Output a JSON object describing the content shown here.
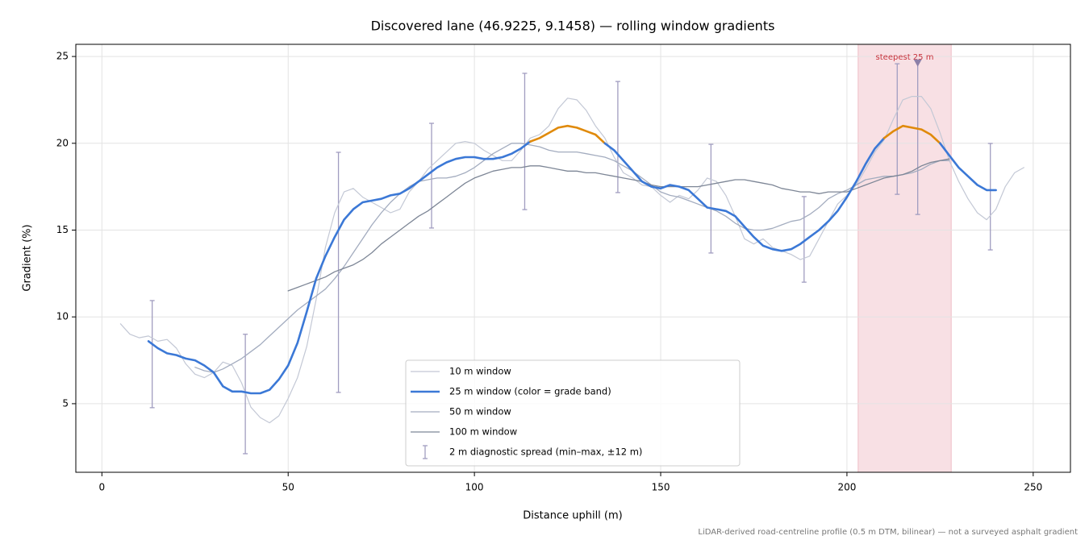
{
  "chart_data": {
    "type": "line",
    "title": "Discovered lane (46.9225, 9.1458) — rolling window gradients",
    "xlabel": "Distance uphill (m)",
    "ylabel": "Gradient (%)",
    "note": "LiDAR-derived road-centreline profile (0.5 m DTM, bilinear) — not a surveyed asphalt gradient",
    "xlim": [
      -7,
      260
    ],
    "ylim": [
      1.05,
      25.7
    ],
    "xticks": [
      0,
      50,
      100,
      150,
      200,
      250
    ],
    "yticks": [
      5,
      10,
      15,
      20,
      25
    ],
    "grid": true,
    "legend": "lower center",
    "x": [
      5,
      7.5,
      10,
      12.5,
      15,
      17.5,
      20,
      22.5,
      25,
      27.5,
      30,
      32.5,
      35,
      37.5,
      40,
      42.5,
      45,
      47.5,
      50,
      52.5,
      55,
      57.5,
      60,
      62.5,
      65,
      67.5,
      70,
      72.5,
      75,
      77.5,
      80,
      82.5,
      85,
      87.5,
      90,
      92.5,
      95,
      97.5,
      100,
      102.5,
      105,
      107.5,
      110,
      112.5,
      115,
      117.5,
      120,
      122.5,
      125,
      127.5,
      130,
      132.5,
      135,
      137.5,
      140,
      142.5,
      145,
      147.5,
      150,
      152.5,
      155,
      157.5,
      160,
      162.5,
      165,
      167.5,
      170,
      172.5,
      175,
      177.5,
      180,
      182.5,
      185,
      187.5,
      190,
      192.5,
      195,
      197.5,
      200,
      202.5,
      205,
      207.5,
      210,
      212.5,
      215,
      217.5,
      220,
      222.5,
      225,
      227.5,
      230,
      232.5,
      235,
      237.5,
      240,
      242.5,
      245,
      247.5
    ],
    "series": [
      {
        "name": "10 m window",
        "color": "#c3c8d5",
        "values": [
          9.6,
          9.0,
          8.8,
          8.9,
          8.6,
          8.7,
          8.2,
          7.3,
          6.7,
          6.5,
          6.8,
          7.4,
          7.2,
          6.2,
          4.8,
          4.2,
          3.9,
          4.3,
          5.3,
          6.5,
          8.3,
          11.0,
          14.0,
          16.0,
          17.2,
          17.4,
          16.9,
          16.6,
          16.3,
          16.0,
          16.2,
          17.2,
          17.8,
          18.5,
          19.0,
          19.5,
          20.0,
          20.1,
          20.0,
          19.6,
          19.3,
          19.0,
          19.0,
          19.6,
          20.3,
          20.5,
          21.0,
          22.0,
          22.6,
          22.5,
          21.9,
          21.0,
          20.3,
          19.2,
          18.3,
          18.0,
          17.6,
          17.5,
          17.0,
          16.6,
          17.0,
          16.8,
          17.3,
          18.0,
          17.8,
          17.0,
          15.8,
          14.5,
          14.2,
          14.5,
          14.0,
          13.8,
          13.6,
          13.3,
          13.5,
          14.5,
          15.5,
          16.5,
          17.0,
          17.6,
          18.5,
          19.5,
          20.2,
          21.4,
          22.5,
          22.7,
          22.7,
          22.0,
          20.6,
          19.0,
          17.8,
          16.8,
          16.0,
          15.6,
          16.2,
          17.5,
          18.3,
          18.6
        ]
      },
      {
        "name": "25 m window (color = grade band)",
        "color": "#3b78d6",
        "values": [
          null,
          null,
          null,
          8.6,
          8.2,
          7.9,
          7.8,
          7.6,
          7.5,
          7.2,
          6.8,
          6.0,
          5.7,
          5.7,
          5.6,
          5.6,
          5.8,
          6.4,
          7.2,
          8.5,
          10.3,
          12.2,
          13.5,
          14.6,
          15.6,
          16.2,
          16.6,
          16.7,
          16.8,
          17.0,
          17.1,
          17.4,
          17.8,
          18.2,
          18.6,
          18.9,
          19.1,
          19.2,
          19.2,
          19.1,
          19.1,
          19.2,
          19.4,
          19.7,
          20.1,
          20.3,
          20.6,
          20.9,
          21.0,
          20.9,
          20.7,
          20.5,
          20.0,
          19.6,
          19.0,
          18.4,
          17.8,
          17.5,
          17.4,
          17.6,
          17.5,
          17.3,
          16.8,
          16.3,
          16.2,
          16.1,
          15.8,
          15.2,
          14.6,
          14.1,
          13.9,
          13.8,
          13.9,
          14.2,
          14.6,
          15.0,
          15.5,
          16.1,
          16.9,
          17.8,
          18.8,
          19.7,
          20.3,
          20.7,
          21.0,
          20.9,
          20.8,
          20.5,
          20.0,
          19.3,
          18.6,
          18.1,
          17.6,
          17.3,
          17.3,
          null,
          null,
          null
        ],
        "band": {
          "threshold": 20,
          "color": "#e08a0b"
        }
      },
      {
        "name": "50 m window",
        "color": "#a3acbf",
        "values": [
          null,
          null,
          null,
          null,
          null,
          null,
          null,
          null,
          7.1,
          6.9,
          6.8,
          7.0,
          7.3,
          7.6,
          8.0,
          8.4,
          8.9,
          9.4,
          9.9,
          10.4,
          10.8,
          11.2,
          11.6,
          12.2,
          12.9,
          13.7,
          14.5,
          15.3,
          16.0,
          16.6,
          17.1,
          17.5,
          17.8,
          17.9,
          18.0,
          18.0,
          18.1,
          18.3,
          18.6,
          19.0,
          19.4,
          19.7,
          20.0,
          20.0,
          19.9,
          19.8,
          19.6,
          19.5,
          19.5,
          19.5,
          19.4,
          19.3,
          19.2,
          19.0,
          18.7,
          18.4,
          18.0,
          17.6,
          17.2,
          17.0,
          16.9,
          16.7,
          16.5,
          16.3,
          16.1,
          15.8,
          15.4,
          15.1,
          15.0,
          15.0,
          15.1,
          15.3,
          15.5,
          15.6,
          15.9,
          16.3,
          16.8,
          17.1,
          17.3,
          17.6,
          17.9,
          18.0,
          18.1,
          18.1,
          18.2,
          18.3,
          18.5,
          18.8,
          19.0,
          19.0,
          null,
          null,
          null,
          null,
          null,
          null,
          null,
          null
        ]
      },
      {
        "name": "100 m window",
        "color": "#7d8696",
        "values": [
          null,
          null,
          null,
          null,
          null,
          null,
          null,
          null,
          null,
          null,
          null,
          null,
          null,
          null,
          null,
          null,
          null,
          null,
          11.5,
          11.7,
          11.9,
          12.1,
          12.3,
          12.6,
          12.8,
          13.0,
          13.3,
          13.7,
          14.2,
          14.6,
          15.0,
          15.4,
          15.8,
          16.1,
          16.5,
          16.9,
          17.3,
          17.7,
          18.0,
          18.2,
          18.4,
          18.5,
          18.6,
          18.6,
          18.7,
          18.7,
          18.6,
          18.5,
          18.4,
          18.4,
          18.3,
          18.3,
          18.2,
          18.1,
          18.0,
          17.9,
          17.8,
          17.6,
          17.5,
          17.5,
          17.5,
          17.5,
          17.5,
          17.6,
          17.7,
          17.8,
          17.9,
          17.9,
          17.8,
          17.7,
          17.6,
          17.4,
          17.3,
          17.2,
          17.2,
          17.1,
          17.2,
          17.2,
          17.2,
          17.4,
          17.6,
          17.8,
          18.0,
          18.1,
          18.2,
          18.4,
          18.7,
          18.9,
          19.0,
          19.1,
          null,
          null,
          null,
          null,
          null,
          null,
          null,
          null
        ]
      }
    ],
    "errorbars": {
      "name": "2 m diagnostic spread (min–max, ±12 m)",
      "color": "#a19dc0",
      "x": [
        13.5,
        38.5,
        63.5,
        88.5,
        113.5,
        138.5,
        163.5,
        188.5,
        213.5,
        219,
        238.5
      ],
      "low": [
        4.77,
        2.12,
        5.65,
        15.12,
        16.18,
        17.16,
        13.68,
        12.0,
        17.06,
        15.9,
        13.86
      ],
      "high": [
        10.94,
        9.0,
        19.48,
        21.15,
        24.03,
        23.56,
        19.94,
        16.93,
        24.58,
        24.7,
        19.99
      ]
    },
    "highlight": {
      "label": "steepest 25 m",
      "x": [
        203,
        228
      ],
      "color": "#e8a0aa",
      "text_color": "#c8323c",
      "marker_x": 219,
      "marker_y": 24.6,
      "marker_color": "#8c7fa8"
    }
  }
}
